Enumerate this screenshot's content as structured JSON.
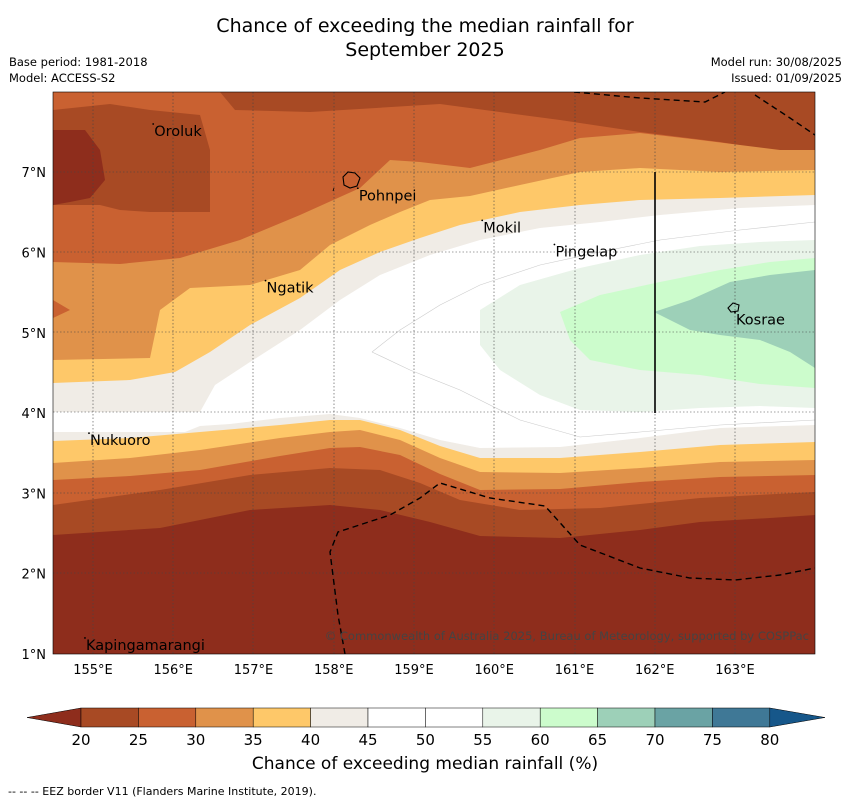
{
  "title_line1": "Chance of exceeding the median rainfall for",
  "title_line2": "September 2025",
  "meta_left": [
    "Base period: 1981-2018",
    "Model: ACCESS-S2"
  ],
  "meta_right": [
    "Model run: 30/08/2025",
    "Issued: 01/09/2025"
  ],
  "lon_ticks": [
    "155°E",
    "156°E",
    "157°E",
    "158°E",
    "159°E",
    "160°E",
    "161°E",
    "162°E",
    "163°E"
  ],
  "lat_ticks": [
    "1°N",
    "2°N",
    "3°N",
    "4°N",
    "5°N",
    "6°N",
    "7°N"
  ],
  "places": [
    {
      "name": "Oroluk",
      "lon": 155.75,
      "lat": 7.6
    },
    {
      "name": "Pohnpei",
      "lon": 158.3,
      "lat": 6.8
    },
    {
      "name": "Mokil",
      "lon": 159.85,
      "lat": 6.4
    },
    {
      "name": "Pingelap",
      "lon": 160.75,
      "lat": 6.1
    },
    {
      "name": "Ngatik",
      "lon": 157.15,
      "lat": 5.65
    },
    {
      "name": "Kosrae",
      "lon": 163.0,
      "lat": 5.25
    },
    {
      "name": "Nukuoro",
      "lon": 154.95,
      "lat": 3.75
    },
    {
      "name": "Kapingamarangi",
      "lon": 154.9,
      "lat": 1.2
    }
  ],
  "copyright": "© Commonwealth of Australia 2025, Bureau of Meteorology, supported by COSPPac",
  "colorbar": {
    "ticks": [
      "20",
      "25",
      "30",
      "35",
      "40",
      "45",
      "50",
      "55",
      "60",
      "65",
      "70",
      "75",
      "80"
    ],
    "colors": [
      "#a84a24",
      "#c96131",
      "#e0924a",
      "#fec869",
      "#f0ece6",
      "#ffffff",
      "#ffffff",
      "#e9f4e9",
      "#ccfccc",
      "#9dd0b8",
      "#6aa3a4",
      "#3f7896"
    ],
    "under_color": "#8e2d1c",
    "over_color": "#16578a",
    "label": "Chance of exceeding median rainfall (%)"
  },
  "footer": "--  --  -- EEZ border V11 (Flanders Marine Institute, 2019)."
}
